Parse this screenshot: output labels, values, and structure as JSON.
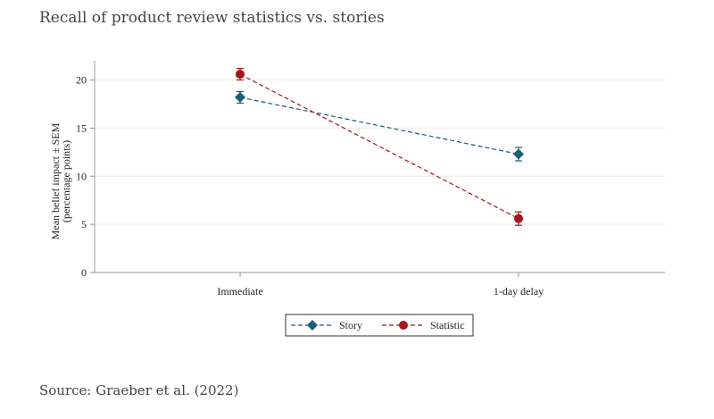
{
  "title": "Recall of product review statistics vs. stories",
  "source": "Source: Graeber et al. (2022)",
  "chart_data": {
    "type": "line",
    "categories": [
      "Immediate",
      "1-day delay"
    ],
    "ylabel_line1": "Mean belief impact ± SEM",
    "ylabel_line2": "(percentage points)",
    "ylim": [
      0,
      22
    ],
    "yticks": [
      0,
      5,
      10,
      15,
      20
    ],
    "grid": true,
    "legend_position": "bottom-center",
    "series": [
      {
        "name": "Story",
        "color": "#1b5e78",
        "marker": "diamond",
        "values": [
          18.2,
          12.3
        ],
        "sem": [
          0.6,
          0.7
        ]
      },
      {
        "name": "Statistic",
        "color": "#a5161b",
        "marker": "circle",
        "values": [
          20.6,
          5.6
        ],
        "sem": [
          0.6,
          0.7
        ]
      }
    ]
  }
}
